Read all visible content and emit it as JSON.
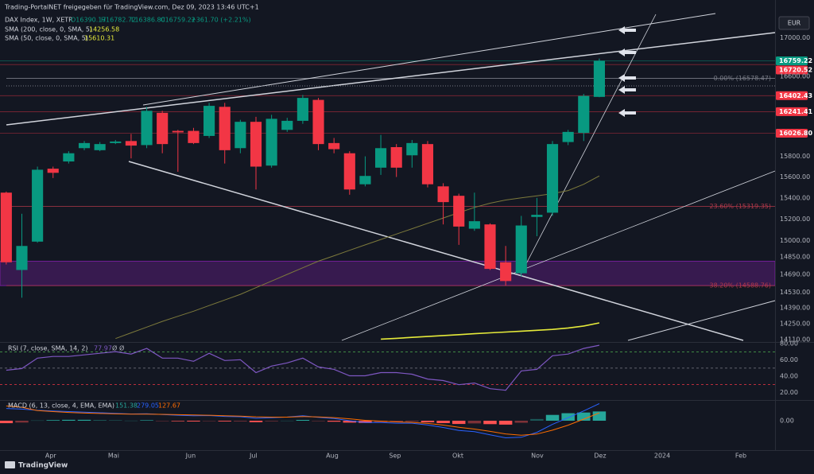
{
  "header": {
    "share": "Trading-PortalNET freigegeben für TradingView.com, Dez 09, 2023 13:46 UTC+1",
    "brand": "TradingView"
  },
  "chart_data": [
    {
      "type": "candlestick",
      "title": "DAX Index, 1W, XETR",
      "ohlc_text": [
        "O16390.17",
        "H16782.72",
        "L16386.80",
        "C16759.22",
        "+361.70 (+2.21%)"
      ],
      "currency": "EUR",
      "log_scale": true,
      "grid": false,
      "up_color": "#089981",
      "down_color": "#f23645",
      "categories": [
        null,
        null,
        null,
        null,
        null,
        null,
        null,
        null,
        null,
        null,
        null,
        null,
        null,
        null,
        null,
        null,
        null,
        null,
        null,
        null,
        null,
        null,
        null,
        null,
        null,
        null,
        null,
        null,
        null,
        null,
        null,
        null,
        null,
        null,
        null,
        null,
        null,
        null,
        null
      ],
      "open": [
        15450,
        14730,
        14990,
        15680,
        15750,
        15880,
        15860,
        15930,
        15950,
        15910,
        16230,
        16050,
        16050,
        16000,
        16290,
        15880,
        16140,
        15710,
        16060,
        16150,
        16360,
        15930,
        15830,
        15530,
        15690,
        15890,
        15810,
        15920,
        15510,
        15420,
        15110,
        15150,
        14800,
        14700,
        15220,
        15260,
        15940,
        16030,
        16390.17
      ],
      "high": [
        15460,
        15250,
        15700,
        15700,
        15850,
        15950,
        15940,
        15960,
        16020,
        16290,
        16250,
        16060,
        16080,
        16330,
        16330,
        16160,
        16190,
        16210,
        16180,
        16410,
        16380,
        15980,
        15850,
        15800,
        16010,
        15920,
        15960,
        15950,
        15540,
        15440,
        15450,
        15160,
        14950,
        15230,
        15400,
        15950,
        16060,
        16420,
        16782.72
      ],
      "low": [
        14780,
        14480,
        14980,
        15590,
        15730,
        15860,
        15850,
        15920,
        15780,
        15880,
        15830,
        15650,
        15920,
        15980,
        15730,
        15830,
        15480,
        15690,
        16040,
        16120,
        15860,
        15830,
        15430,
        15510,
        15620,
        15600,
        15690,
        15500,
        15150,
        14960,
        15090,
        14730,
        14590,
        14670,
        15040,
        15230,
        15910,
        15950,
        16386.8
      ],
      "close": [
        14800,
        14950,
        15670,
        15640,
        15830,
        15930,
        15920,
        15945,
        15905,
        16250,
        15920,
        16035,
        15930,
        16300,
        15860,
        16140,
        15700,
        16170,
        16150,
        16380,
        15920,
        15870,
        15480,
        15610,
        15880,
        15690,
        15930,
        15530,
        15360,
        15130,
        15180,
        14740,
        14630,
        15140,
        15240,
        15920,
        16040,
        16400,
        16759.22
      ],
      "series": [
        {
          "name": "SMA (200, close, 0, SMA, 5)",
          "color": "#e5ea3a",
          "width": 1.6,
          "values": [
            null,
            null,
            null,
            null,
            null,
            null,
            null,
            null,
            null,
            null,
            null,
            null,
            null,
            null,
            null,
            null,
            null,
            null,
            null,
            null,
            null,
            null,
            null,
            null,
            14115,
            14122,
            14130,
            14138,
            14146,
            14154,
            14162,
            14170,
            14177,
            14184,
            14192,
            14200,
            14212,
            14230,
            14256.58
          ]
        },
        {
          "name": "SMA (50, close, 0, SMA, 5)",
          "color": "#7d7a3c",
          "width": 1,
          "values": [
            null,
            null,
            null,
            null,
            null,
            null,
            null,
            14120,
            14170,
            14220,
            14270,
            14315,
            14360,
            14410,
            14460,
            14510,
            14570,
            14630,
            14690,
            14750,
            14810,
            14860,
            14910,
            14960,
            15010,
            15060,
            15110,
            15160,
            15210,
            15260,
            15310,
            15350,
            15380,
            15400,
            15420,
            15440,
            15470,
            15530,
            15610.31
          ]
        }
      ],
      "zone": {
        "low": 14588.76,
        "high": 14810,
        "color": "#7b1fa2"
      },
      "fib_levels": [
        {
          "value": 16578.47,
          "label": "0.00% (16578.47)",
          "color": "#787b86"
        },
        {
          "value": 15319.35,
          "label": "23.60% (15319.35)",
          "color": "#b2394a"
        },
        {
          "value": 14588.76,
          "label": "38.20% (14588.76)",
          "color": "#b2394a"
        }
      ],
      "price_labels": [
        {
          "value": 16759.22,
          "label": "16759.22",
          "color": "#089981"
        },
        {
          "value": 16720.52,
          "label": "16720.52",
          "color": "#f23645"
        },
        {
          "value": 16402.43,
          "label": "16402.43",
          "color": "#f23645"
        },
        {
          "value": 16241.41,
          "label": "16241.41",
          "color": "#f23645"
        },
        {
          "value": 16026.8,
          "label": "16026.80",
          "color": "#f23645"
        }
      ],
      "ylim": [
        14090,
        17230
      ],
      "yticks": [
        {
          "value": 17000,
          "label": "17000.00"
        },
        {
          "value": 16600,
          "label": "16600.00"
        },
        {
          "value": 15800,
          "label": "15800.00"
        },
        {
          "value": 15600,
          "label": "15600.00"
        },
        {
          "value": 15400,
          "label": "15400.00"
        },
        {
          "value": 15200,
          "label": "15200.00"
        },
        {
          "value": 15000,
          "label": "15000.00"
        },
        {
          "value": 14850,
          "label": "14850.00"
        },
        {
          "value": 14690,
          "label": "14690.00"
        },
        {
          "value": 14530,
          "label": "14530.00"
        },
        {
          "value": 14390,
          "label": "14390.00"
        },
        {
          "value": 14250,
          "label": "14250.00"
        },
        {
          "value": 14110,
          "label": "14110.00"
        }
      ],
      "xlim": [
        -0.4,
        49.26
      ],
      "xticks": [
        {
          "value": 2.85,
          "label": "Apr"
        },
        {
          "value": 6.88,
          "label": "Mai"
        },
        {
          "value": 11.82,
          "label": "Jun"
        },
        {
          "value": 15.84,
          "label": "Jul"
        },
        {
          "value": 20.89,
          "label": "Aug"
        },
        {
          "value": 24.91,
          "label": "Sep"
        },
        {
          "value": 28.94,
          "label": "Okt"
        },
        {
          "value": 34.03,
          "label": "Nov"
        },
        {
          "value": 38.05,
          "label": "Dez"
        },
        {
          "value": 42.03,
          "label": "2024"
        },
        {
          "value": 47.07,
          "label": "Feb"
        }
      ]
    },
    {
      "type": "line",
      "title": "RSI (7, close, SMA, 14, 2)",
      "na_labels": [
        "Ø",
        "Ø"
      ],
      "series": [
        {
          "name": null,
          "color": "#7e57c2",
          "values": [
            47.5,
            49.5,
            62.3,
            64.3,
            64.3,
            66.2,
            68.2,
            70.2,
            67.2,
            74.1,
            62.3,
            62.3,
            58.4,
            68.2,
            59.3,
            60.3,
            44.6,
            52.5,
            56.4,
            62.3,
            51.5,
            48.5,
            40.7,
            40.7,
            44.6,
            44.6,
            42.6,
            36.7,
            34.8,
            29.8,
            31.8,
            24.9,
            23,
            46.6,
            48.5,
            65.2,
            67.2,
            74.1,
            77.97
          ]
        }
      ],
      "levels": [
        {
          "value": 70,
          "color": "#4caf50"
        },
        {
          "value": 50,
          "color": "#787b86"
        },
        {
          "value": 30,
          "color": "#f23645"
        }
      ],
      "ylim": [
        11,
        82
      ],
      "yticks": [
        {
          "value": 80,
          "label": "80.00"
        },
        {
          "value": 60,
          "label": "60.00"
        },
        {
          "value": 40,
          "label": "40.00"
        },
        {
          "value": 20,
          "label": "20.00"
        }
      ]
    },
    {
      "type": "macd",
      "title": "MACD (6, 13, close, 4, EMA, EMA)",
      "series": [
        {
          "name": null,
          "color": "#26a69a",
          "negative_color": "#ff5252",
          "values": [
            -40,
            -30,
            5,
            10,
            15,
            15,
            12,
            8,
            2,
            8,
            -4,
            -9,
            -13,
            -5,
            -12,
            -11,
            -24,
            -9,
            1,
            13,
            -7,
            -16,
            -31,
            -37,
            -24,
            -21,
            -13,
            -26,
            -39,
            -53,
            -44,
            -56,
            -64,
            -33,
            28,
            95,
            123,
            134,
            151.38
          ]
        },
        {
          "name": null,
          "color": "#2962ff",
          "values": [
            200,
            190,
            170,
            160,
            150,
            140,
            130,
            120,
            110,
            115,
            100,
            90,
            80,
            85,
            70,
            65,
            40,
            50,
            60,
            80,
            55,
            35,
            0,
            -30,
            -30,
            -40,
            -40,
            -70,
            -110,
            -160,
            -180,
            -230,
            -280,
            -270,
            -190,
            -60,
            50,
            160,
            279.05
          ]
        },
        {
          "name": null,
          "color": "#ff6d00",
          "values": [
            240,
            220,
            165,
            150,
            135,
            125,
            118,
            112,
            108,
            107,
            104,
            99,
            93,
            90,
            82,
            76,
            64,
            59,
            59,
            67,
            62,
            51,
            31,
            7,
            -6,
            -19,
            -27,
            -44,
            -71,
            -107,
            -136,
            -174,
            -216,
            -237,
            -218,
            -155,
            -73,
            26,
            127.67
          ]
        }
      ],
      "ylim": [
        -481,
        312
      ],
      "yticks": [
        {
          "value": 0,
          "label": "0.00"
        }
      ]
    }
  ]
}
